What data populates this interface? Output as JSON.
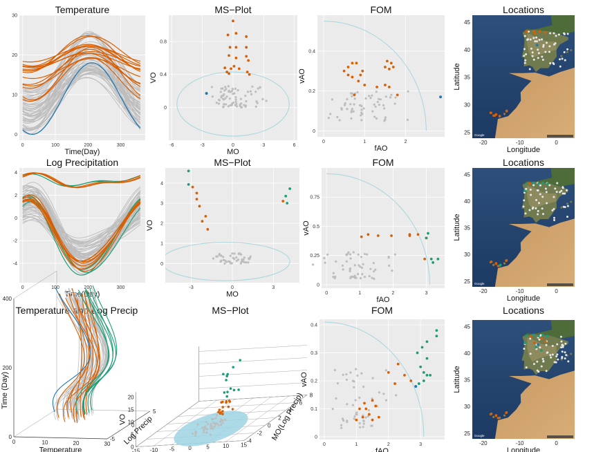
{
  "colors": {
    "background": "#ebebeb",
    "grid": "#ffffff",
    "normal": "#bdbdbd",
    "outlier_orange": "#d95f02",
    "outlier_green": "#1b9e77",
    "highlight_blue": "#1f78b4",
    "boundary": "#a6d6dc",
    "ellipse_fill": "#9ed3e3"
  },
  "chart_data": [
    {
      "id": "r1-temperature",
      "type": "line",
      "title": "Temperature",
      "xlabel": "Time(Day)",
      "ylabel": "",
      "xlim": [
        -10,
        375
      ],
      "ylim": [
        -1.5,
        30
      ],
      "xticks": [
        0,
        100,
        200,
        300
      ],
      "yticks": [
        0,
        10,
        20,
        30
      ],
      "series": [
        {
          "group": "normal",
          "count": 55,
          "peak_day": 205,
          "min_range": [
            0,
            12
          ],
          "max_range": [
            14,
            26
          ]
        },
        {
          "group": "orange",
          "count": 14,
          "peak_day": 205,
          "min_range": [
            7,
            19
          ],
          "max_range": [
            19,
            25.5
          ]
        },
        {
          "group": "blue",
          "count": 1,
          "peak_day": 212,
          "min": 0,
          "max": 18
        }
      ]
    },
    {
      "id": "r1-msplot",
      "type": "scatter",
      "title": "MS−Plot",
      "xlabel": "MO",
      "ylabel": "VO",
      "xlim": [
        -6.3,
        6.3
      ],
      "ylim": [
        -0.4,
        1.12
      ],
      "xticks": [
        -6,
        -3,
        0,
        3,
        6
      ],
      "yticks": [
        0.0,
        0.4,
        0.8
      ],
      "boundary": {
        "shape": "ellipse",
        "center": [
          0,
          0.04
        ],
        "rx": 5.5,
        "ry": 0.39
      },
      "points": {
        "orange": [
          [
            0,
            1.05
          ],
          [
            -0.5,
            0.88
          ],
          [
            0.3,
            0.9
          ],
          [
            1.3,
            0.86
          ],
          [
            -0.3,
            0.73
          ],
          [
            0.3,
            0.73
          ],
          [
            1.3,
            0.73
          ],
          [
            -0.4,
            0.63
          ],
          [
            0.3,
            0.6
          ],
          [
            1.3,
            0.62
          ],
          [
            1.5,
            0.57
          ],
          [
            -0.8,
            0.48
          ],
          [
            -0.2,
            0.47
          ],
          [
            0.6,
            0.47
          ],
          [
            -0.6,
            0.43
          ],
          [
            -0.4,
            0.41
          ],
          [
            1.4,
            0.43
          ],
          [
            1.6,
            0.4
          ],
          [
            0.1,
            0.5
          ]
        ],
        "blue": [
          [
            -2.6,
            0.17
          ]
        ],
        "normal_count": 70,
        "normal_x_range": [
          -2,
          2
        ],
        "normal_y_range": [
          0,
          0.26
        ]
      }
    },
    {
      "id": "r1-fom",
      "type": "scatter",
      "title": "FOM",
      "xlabel": "fAO",
      "ylabel": "vAO",
      "xlim": [
        -0.15,
        2.95
      ],
      "ylim": [
        -0.03,
        0.58
      ],
      "xticks": [
        0,
        1,
        2
      ],
      "yticks": [
        0.0,
        0.2,
        0.4
      ],
      "boundary": {
        "shape": "arc",
        "center": [
          0,
          0
        ],
        "rx": 2.5,
        "ry": 0.55
      },
      "points": {
        "orange": [
          [
            0.6,
            0.32
          ],
          [
            0.7,
            0.34
          ],
          [
            0.8,
            0.34
          ],
          [
            0.95,
            0.3
          ],
          [
            1.55,
            0.35
          ],
          [
            1.65,
            0.34
          ],
          [
            1.5,
            0.32
          ],
          [
            1.6,
            0.31
          ],
          [
            1.7,
            0.32
          ],
          [
            0.5,
            0.3
          ],
          [
            0.6,
            0.28
          ],
          [
            0.7,
            0.27
          ],
          [
            0.9,
            0.28
          ],
          [
            0.85,
            0.25
          ],
          [
            1.0,
            0.23
          ],
          [
            1.3,
            0.22
          ],
          [
            1.5,
            0.23
          ],
          [
            1.6,
            0.22
          ],
          [
            1.8,
            0.18
          ],
          [
            0.75,
            0.18
          ]
        ],
        "blue": [
          [
            2.85,
            0.17
          ]
        ],
        "normal_count": 60,
        "normal_x_range": [
          0.3,
          1.8
        ],
        "normal_y_range": [
          0.05,
          0.2
        ]
      }
    },
    {
      "id": "r1-locations",
      "type": "map",
      "title": "Locations",
      "xlabel": "Longitude",
      "ylabel": "Latitude",
      "xlim": [
        -23,
        5
      ],
      "ylim": [
        24,
        46.3
      ],
      "xticks": [
        -20,
        -10,
        0
      ],
      "yticks": [
        25,
        30,
        35,
        40,
        45
      ],
      "points": {
        "orange": [
          [
            -8.2,
            43.4
          ],
          [
            -6.1,
            43.4
          ],
          [
            -4.5,
            43.4
          ],
          [
            -3,
            43.2
          ],
          [
            -5.8,
            43
          ],
          [
            -17.9,
            28.6
          ],
          [
            -16.5,
            28.3
          ],
          [
            -15.5,
            28
          ],
          [
            -13.6,
            28.9
          ],
          [
            -16.9,
            28.1
          ]
        ],
        "blue": [
          [
            -5.3,
            40.9
          ]
        ],
        "normal_count": 50,
        "normal_lon_range": [
          -9,
          3.3
        ],
        "normal_lat_range": [
          36.5,
          43.5
        ]
      },
      "attribution": "Google"
    },
    {
      "id": "r2-precipitation",
      "type": "line",
      "title": "Log Precipitation",
      "xlabel": "Time(Day)",
      "ylabel": "",
      "xlim": [
        -10,
        375
      ],
      "ylim": [
        -5.7,
        4.4
      ],
      "xticks": [
        0,
        100,
        200,
        300
      ],
      "yticks": [
        -4,
        -2,
        0,
        2,
        4
      ],
      "series": [
        {
          "group": "normal",
          "count": 55
        },
        {
          "group": "green",
          "count": 5
        },
        {
          "group": "orange",
          "count": 10
        }
      ]
    },
    {
      "id": "r2-msplot",
      "type": "scatter",
      "title": "MS−Plot",
      "xlabel": "MO",
      "ylabel": "VO",
      "xlim": [
        -4.9,
        4.9
      ],
      "ylim": [
        -0.95,
        4.75
      ],
      "xticks": [
        -3,
        0,
        3
      ],
      "yticks": [
        0,
        1,
        2,
        3,
        4
      ],
      "boundary": {
        "shape": "ellipse",
        "center": [
          -0.5,
          0.1
        ],
        "rx": 4.7,
        "ry": 0.95
      },
      "points": {
        "green": [
          [
            -3.2,
            4.6
          ],
          [
            -3.2,
            3.93
          ],
          [
            4.2,
            3.72
          ],
          [
            3.9,
            3.35
          ],
          [
            4.0,
            3.0
          ]
        ],
        "orange": [
          [
            -2.9,
            3.8
          ],
          [
            -2.6,
            3.5
          ],
          [
            -2.6,
            3.2
          ],
          [
            -2.4,
            2.85
          ],
          [
            -1.95,
            2.35
          ],
          [
            -2.2,
            2.1
          ],
          [
            -1.8,
            1.7
          ],
          [
            3.7,
            3.1
          ]
        ],
        "normal_count": 45,
        "normal_x_range": [
          -1.2,
          1.2
        ],
        "normal_y_range": [
          0,
          0.5
        ]
      }
    },
    {
      "id": "r2-fom",
      "type": "scatter",
      "title": "FOM",
      "xlabel": "fAO",
      "ylabel": "vAO",
      "xlim": [
        -0.15,
        3.55
      ],
      "ylim": [
        -0.03,
        1.0
      ],
      "xticks": [
        0,
        1,
        2,
        3
      ],
      "yticks": [
        0.0,
        0.25,
        0.5,
        0.75
      ],
      "boundary": {
        "shape": "arc",
        "center": [
          0,
          0
        ],
        "rx": 3.1,
        "ry": 0.95
      },
      "points": {
        "orange": [
          [
            1.05,
            0.41
          ],
          [
            1.25,
            0.43
          ],
          [
            1.55,
            0.42
          ],
          [
            1.95,
            0.42
          ],
          [
            2.5,
            0.42
          ],
          [
            2.75,
            0.43
          ],
          [
            2.5,
            0.43
          ],
          [
            2.95,
            0.22
          ],
          [
            3.0,
            0.4
          ]
        ],
        "green": [
          [
            3.05,
            0.44
          ],
          [
            3.0,
            0.4
          ],
          [
            3.15,
            0.22
          ],
          [
            3.35,
            0.22
          ],
          [
            3.2,
            0.19
          ]
        ],
        "normal_count": 55,
        "normal_x_range": [
          0.2,
          1.8
        ],
        "normal_y_range": [
          0.05,
          0.3
        ]
      }
    },
    {
      "id": "r2-locations",
      "type": "map",
      "title": "Locations",
      "xlabel": "Longitude",
      "ylabel": "Latitude",
      "xlim": [
        -23,
        5
      ],
      "ylim": [
        24,
        46.3
      ],
      "xticks": [
        -20,
        -10,
        0
      ],
      "yticks": [
        25,
        30,
        35,
        40,
        45
      ],
      "points": {
        "green": [
          [
            -8,
            43.3
          ],
          [
            -6.2,
            43.5
          ],
          [
            -4.9,
            43.3
          ],
          [
            -3.7,
            43.5
          ],
          [
            -2.4,
            43.3
          ],
          [
            -8.6,
            42
          ],
          [
            -15.3,
            28.1
          ]
        ],
        "orange": [
          [
            -17.8,
            28.7
          ],
          [
            -16.5,
            28.4
          ],
          [
            -13.7,
            28.9
          ],
          [
            -15.9,
            27.9
          ],
          [
            -7.4,
            43.4
          ]
        ],
        "normal_count": 50,
        "normal_lon_range": [
          -9,
          3.3
        ],
        "normal_lat_range": [
          36.5,
          43.5
        ]
      },
      "attribution": "Google"
    },
    {
      "id": "r3-3d-curves",
      "type": "line",
      "title": "Temperature and Log Precip",
      "xlabel": "Temperature",
      "ylabel": "Log Precip",
      "zlabel": "Time (Day)",
      "xticks": [
        0,
        10,
        20,
        30
      ],
      "yticks": [
        -5,
        0,
        5
      ],
      "zticks": [
        0,
        200,
        400
      ],
      "series": [
        {
          "group": "normal",
          "count": 45
        },
        {
          "group": "orange",
          "count": 10
        },
        {
          "group": "green",
          "count": 6
        },
        {
          "group": "blue",
          "count": 1
        }
      ]
    },
    {
      "id": "r3-msplot-3d",
      "type": "scatter",
      "title": "MS−Plot",
      "xlabel": "MO(Temp)",
      "ylabel": "MO(Log Precip)",
      "zlabel": "VO",
      "xticks": [
        -15,
        -10,
        -5,
        0,
        5,
        10,
        15
      ],
      "yticks": [
        -4,
        -2,
        0,
        2,
        4,
        6,
        8
      ],
      "zticks": [
        0,
        5,
        10,
        15,
        20
      ],
      "points": {
        "green_count": 12,
        "orange_count": 15,
        "normal_count": 40
      }
    },
    {
      "id": "r3-fom",
      "type": "scatter",
      "title": "FOM",
      "xlabel": "fAO",
      "ylabel": "vAO",
      "xlim": [
        -0.15,
        3.75
      ],
      "ylim": [
        -0.01,
        0.42
      ],
      "xticks": [
        0,
        1,
        2,
        3
      ],
      "yticks": [
        0.0,
        0.1,
        0.2,
        0.3,
        0.4
      ],
      "boundary": {
        "shape": "arc",
        "center": [
          0,
          0
        ],
        "rx": 3.1,
        "ry": 0.41
      },
      "points": {
        "green": [
          [
            3.5,
            0.38
          ],
          [
            3.5,
            0.36
          ],
          [
            3.2,
            0.34
          ],
          [
            3.05,
            0.32
          ],
          [
            2.9,
            0.3
          ],
          [
            3.2,
            0.28
          ],
          [
            3.0,
            0.25
          ],
          [
            3.1,
            0.23
          ],
          [
            3.2,
            0.22
          ],
          [
            3.3,
            0.22
          ],
          [
            2.95,
            0.19
          ],
          [
            3.1,
            0.2
          ]
        ],
        "orange": [
          [
            2.3,
            0.26
          ],
          [
            2.0,
            0.23
          ],
          [
            2.5,
            0.22
          ],
          [
            2.7,
            0.2
          ],
          [
            2.2,
            0.19
          ],
          [
            1.5,
            0.13
          ],
          [
            1.6,
            0.11
          ],
          [
            1.3,
            0.1
          ],
          [
            1.4,
            0.08
          ],
          [
            1.2,
            0.07
          ],
          [
            1.0,
            0.06
          ],
          [
            1.5,
            0.06
          ],
          [
            1.7,
            0.07
          ],
          [
            1.1,
            0.1
          ],
          [
            1.25,
            0.12
          ]
        ],
        "blue": [
          [
            2.85,
            0.18
          ]
        ],
        "normal_count": 50,
        "normal_x_range": [
          0.5,
          1.8
        ],
        "normal_y_range": [
          0.03,
          0.25
        ]
      }
    },
    {
      "id": "r3-locations",
      "type": "map",
      "title": "Locations",
      "xlabel": "Longitude",
      "ylabel": "Latitude",
      "xlim": [
        -23,
        5
      ],
      "ylim": [
        24,
        46.3
      ],
      "xticks": [
        -20,
        -10,
        0
      ],
      "yticks": [
        25,
        30,
        35,
        40,
        45
      ],
      "points": {
        "green": [
          [
            -8,
            43.3
          ],
          [
            -6.2,
            43.5
          ],
          [
            -4.9,
            43.3
          ],
          [
            -3.7,
            43.5
          ],
          [
            -2.4,
            43.3
          ],
          [
            -8.6,
            42
          ],
          [
            -5.6,
            41.2
          ],
          [
            -4.1,
            40.6
          ]
        ],
        "orange": [
          [
            -17.8,
            28.7
          ],
          [
            -16.5,
            28.4
          ],
          [
            -13.7,
            28.9
          ],
          [
            -15.9,
            27.9
          ],
          [
            -7,
            43.2
          ],
          [
            -4,
            42.8
          ],
          [
            -3,
            42.2
          ],
          [
            -6,
            42
          ]
        ],
        "blue": [
          [
            -5,
            41.7
          ]
        ],
        "normal_count": 50,
        "normal_lon_range": [
          -9,
          3.3
        ],
        "normal_lat_range": [
          36.5,
          43.5
        ]
      },
      "attribution": "Google"
    }
  ]
}
